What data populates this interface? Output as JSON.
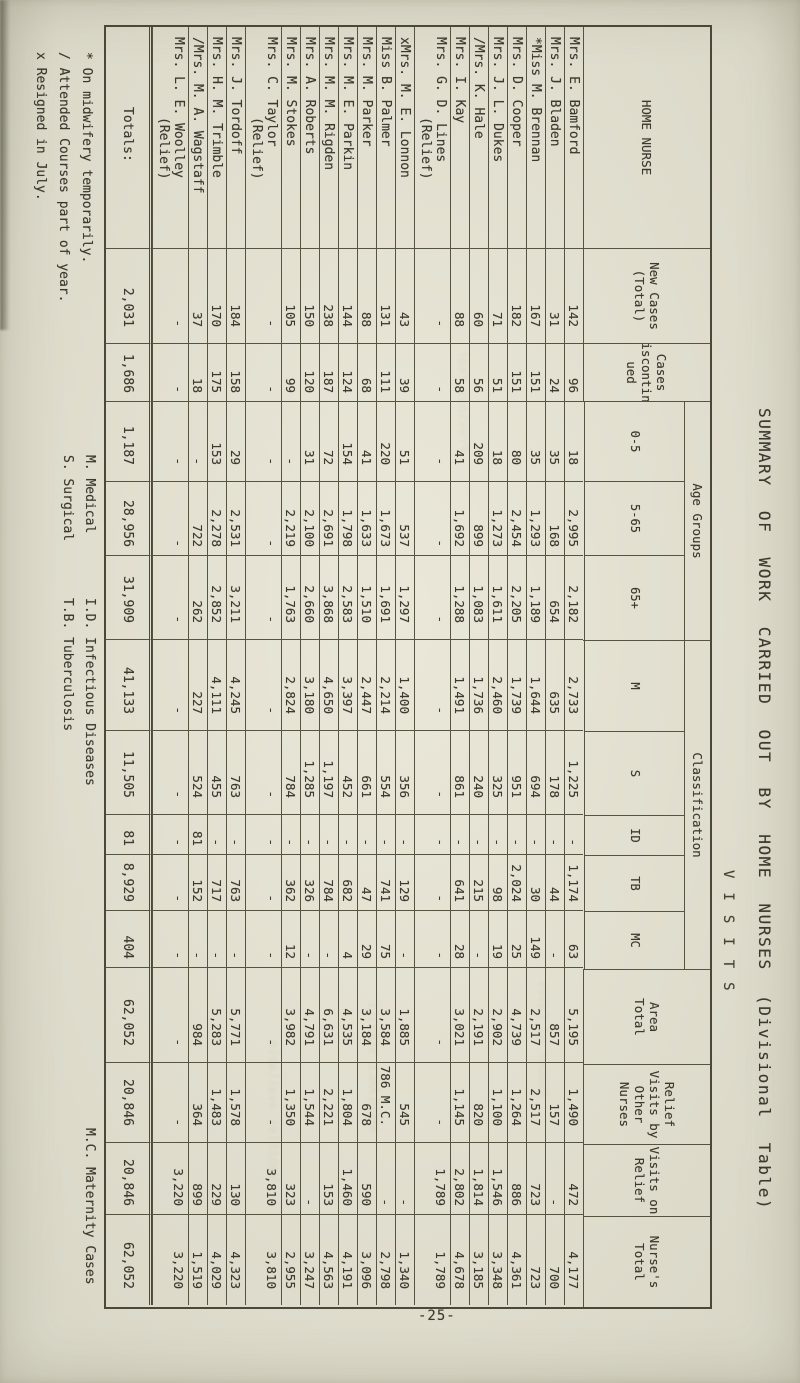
{
  "page": {
    "title": "SUMMARY OF WORK CARRIED OUT BY HOME NURSES (Divisional Table)",
    "visits_label": "VISITS",
    "page_number": "-25-"
  },
  "colors": {
    "paper": "#e8e5d4",
    "ink": "#3c3a2e",
    "line": "#565341"
  },
  "table": {
    "corner_header": "HOME NURSE",
    "plain_headers": {
      "new_cases": "New Cases\n(Total)",
      "discontinued": "Cases\nDiscontin-\nued",
      "area_total": "Area\nTotal",
      "relief_by_others": "Relief\nVisits by\nOther\nNurses",
      "visits_on_relief": "Visits on\nRelief",
      "nurse_total": "Nurse's\nTotal"
    },
    "groups": {
      "age": {
        "label": "Age Groups",
        "subs": [
          "0-5",
          "5-65",
          "65+"
        ]
      },
      "classification": {
        "label": "Classification",
        "subs": [
          "M",
          "S",
          "ID",
          "TB",
          "MC"
        ]
      }
    },
    "rows": [
      {
        "name": "Mrs. E. Bamford",
        "relief": "",
        "values": [
          "142",
          "96",
          "18",
          "2,995",
          "2,182",
          "2,733",
          "1,225",
          "-",
          "1,174",
          "63",
          "5,195",
          "1,490",
          "472",
          "4,177"
        ]
      },
      {
        "name": "Mrs. J. Bladen",
        "relief": "",
        "values": [
          "31",
          "24",
          "35",
          "168",
          "654",
          "635",
          "178",
          "-",
          "44",
          "-",
          "857",
          "157",
          "-",
          "700"
        ]
      },
      {
        "name": "*Miss M. Brennan",
        "relief": "",
        "values": [
          "167",
          "151",
          "35",
          "1,293",
          "1,189",
          "1,644",
          "694",
          "-",
          "30",
          "149",
          "2,517",
          "2,517",
          "723",
          "723"
        ]
      },
      {
        "name": "Mrs. D. Cooper",
        "relief": "",
        "values": [
          "182",
          "151",
          "80",
          "2,454",
          "2,205",
          "1,739",
          "951",
          "-",
          "2,024",
          "25",
          "4,739",
          "1,264",
          "886",
          "4,361"
        ]
      },
      {
        "name": "Mrs. J. L. Dukes",
        "relief": "",
        "values": [
          "71",
          "51",
          "18",
          "1,273",
          "1,611",
          "2,460",
          "325",
          "-",
          "98",
          "19",
          "2,902",
          "1,100",
          "1,546",
          "3,348"
        ]
      },
      {
        "name": "/Mrs. K. Hale",
        "relief": "",
        "values": [
          "60",
          "56",
          "209",
          "899",
          "1,083",
          "1,736",
          "240",
          "-",
          "215",
          "-",
          "2,191",
          "820",
          "1,814",
          "3,185"
        ]
      },
      {
        "name": "Mrs. I. Kay",
        "relief": "",
        "values": [
          "88",
          "58",
          "41",
          "1,692",
          "1,288",
          "1,491",
          "861",
          "-",
          "641",
          "28",
          "3,021",
          "1,145",
          "2,802",
          "4,678"
        ]
      },
      {
        "name": "Mrs. G. D. Lines",
        "relief": "(Relief)",
        "values": [
          "-",
          "-",
          "-",
          "-",
          "-",
          "-",
          "-",
          "-",
          "-",
          "-",
          "-",
          "-",
          "1,789",
          "1,789"
        ]
      },
      {
        "name": "xMrs. M. E. Lonnon",
        "relief": "",
        "values": [
          "43",
          "39",
          "51",
          "537",
          "1,297",
          "1,400",
          "356",
          "-",
          "129",
          "-",
          "1,885",
          "545",
          "-",
          "1,340"
        ]
      },
      {
        "name": "Miss B. Palmer",
        "relief": "",
        "values": [
          "131",
          "111",
          "220",
          "1,673",
          "1,691",
          "2,214",
          "554",
          "-",
          "741",
          "75",
          "3,584",
          "786  M.C.",
          "-",
          "2,798"
        ]
      },
      {
        "name": "Mrs. M. Parker",
        "relief": "",
        "values": [
          "88",
          "68",
          "41",
          "1,633",
          "1,510",
          "2,447",
          "661",
          "-",
          "47",
          "29",
          "3,184",
          "678",
          "590",
          "3,096"
        ]
      },
      {
        "name": "Mrs. M. E. Parkin",
        "relief": "",
        "values": [
          "144",
          "124",
          "154",
          "1,798",
          "2,583",
          "3,397",
          "452",
          "-",
          "682",
          "4",
          "4,535",
          "1,804",
          "1,460",
          "4,191"
        ]
      },
      {
        "name": "Mrs. M. M. Rigden",
        "relief": "",
        "values": [
          "238",
          "187",
          "72",
          "2,691",
          "3,868",
          "4,650",
          "1,197",
          "-",
          "784",
          "-",
          "6,631",
          "2,221",
          "153",
          "4,563"
        ]
      },
      {
        "name": "Mrs. A. Roberts",
        "relief": "",
        "values": [
          "150",
          "120",
          "31",
          "2,100",
          "2,660",
          "3,180",
          "1,285",
          "-",
          "326",
          "-",
          "4,791",
          "1,544",
          "-",
          "3,247"
        ]
      },
      {
        "name": "Mrs. M. Stokes",
        "relief": "",
        "values": [
          "105",
          "99",
          "-",
          "2,219",
          "1,763",
          "2,824",
          "784",
          "-",
          "362",
          "12",
          "3,982",
          "1,350",
          "323",
          "2,955"
        ]
      },
      {
        "name": "Mrs. C. Taylor",
        "relief": "(Relief)",
        "values": [
          "-",
          "-",
          "-",
          "-",
          "-",
          "-",
          "-",
          "-",
          "-",
          "-",
          "-",
          "-",
          "3,810",
          "3,810"
        ]
      },
      {
        "name": "Mrs. J. Tordoff",
        "relief": "",
        "values": [
          "184",
          "158",
          "29",
          "2,531",
          "3,211",
          "4,245",
          "763",
          "-",
          "763",
          "-",
          "5,771",
          "1,578",
          "130",
          "4,323"
        ]
      },
      {
        "name": "Mrs. H. M. Trimble",
        "relief": "",
        "values": [
          "170",
          "175",
          "153",
          "2,278",
          "2,852",
          "4,111",
          "455",
          "-",
          "717",
          "-",
          "5,283",
          "1,483",
          "229",
          "4,029"
        ]
      },
      {
        "name": "/Mrs. M. A. Wagstaff",
        "relief": "",
        "values": [
          "37",
          "18",
          "-",
          "722",
          "262",
          "227",
          "524",
          "81",
          "152",
          "-",
          "984",
          "364",
          "899",
          "1,519"
        ]
      },
      {
        "name": "Mrs. L. E. Woolley",
        "relief": "(Relief)",
        "values": [
          "-",
          "-",
          "-",
          "-",
          "-",
          "-",
          "-",
          "-",
          "-",
          "-",
          "-",
          "-",
          "3,220",
          "3,220"
        ]
      }
    ],
    "totals": {
      "label": "Totals:",
      "values": [
        "2,031",
        "1,686",
        "1,187",
        "28,956",
        "31,909",
        "41,133",
        "11,505",
        "81",
        "8,929",
        "404",
        "62,052",
        "20,846",
        "20,846",
        "62,052"
      ]
    }
  },
  "notes": {
    "medical_surgical": "M. Medical\nS. Surgical",
    "id_tb": "I.D. Infectious Diseases\nT.B. Tuberculosis",
    "maternity": "M.C. Maternity Cases"
  },
  "footnotes": {
    "line1": "* On midwifery temporarily.",
    "line2": "/ Attended Courses part of year.",
    "line3": "x Resigned in July."
  }
}
